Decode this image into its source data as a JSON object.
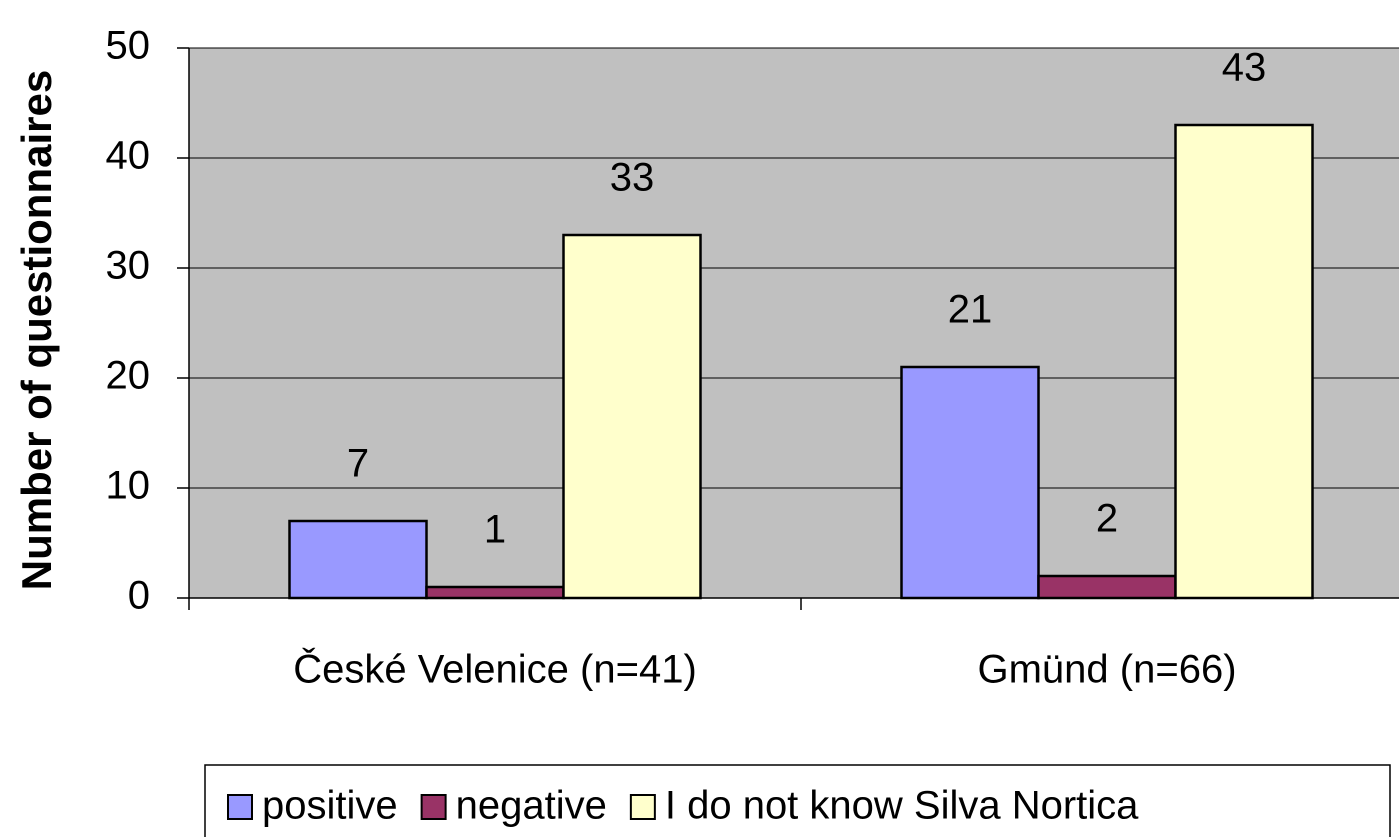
{
  "chart_data": {
    "type": "bar",
    "y_label": "Number of questionnaires",
    "categories": [
      "České Velenice (n=41)",
      "Gmünd (n=66)"
    ],
    "series": [
      {
        "name": "positive",
        "color": "#9999ff",
        "values": [
          7,
          21
        ]
      },
      {
        "name": "negative",
        "color": "#993366",
        "values": [
          1,
          2
        ]
      },
      {
        "name": "I do not know Silva Nortica",
        "color": "#ffffcc",
        "values": [
          33,
          43
        ]
      }
    ],
    "ylim": [
      0,
      50
    ],
    "yticks": [
      0,
      10,
      20,
      30,
      40,
      50
    ],
    "grid": true,
    "legend": "bottom"
  }
}
